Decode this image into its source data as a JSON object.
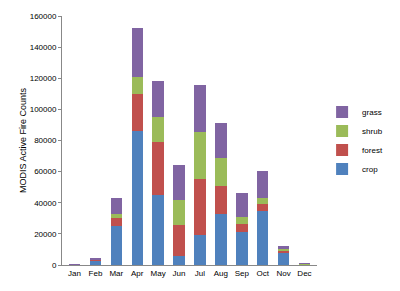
{
  "chart_data": {
    "type": "bar",
    "stacked": true,
    "y_label": "MODIS Active Fire Counts",
    "categories": [
      "Jan",
      "Feb",
      "Mar",
      "Apr",
      "May",
      "Jun",
      "Jul",
      "Aug",
      "Sep",
      "Oct",
      "Nov",
      "Dec"
    ],
    "series": [
      {
        "name": "crop",
        "color": "#4f81bd",
        "values": [
          300,
          3000,
          25000,
          86000,
          45000,
          5500,
          19500,
          33000,
          21500,
          34500,
          8000,
          400
        ]
      },
      {
        "name": "forest",
        "color": "#c0504d",
        "values": [
          100,
          400,
          5000,
          24000,
          34000,
          20500,
          36000,
          18000,
          5000,
          5000,
          1500,
          200
        ]
      },
      {
        "name": "shrub",
        "color": "#9bbb59",
        "values": [
          50,
          300,
          3000,
          11000,
          16000,
          16000,
          30000,
          17500,
          4500,
          3500,
          1000,
          100
        ]
      },
      {
        "name": "grass",
        "color": "#8064a2",
        "values": [
          50,
          300,
          10000,
          31500,
          23000,
          22500,
          30000,
          22500,
          15000,
          17500,
          2000,
          100
        ]
      }
    ],
    "ylim": [
      0,
      160000
    ],
    "yticks": [
      0,
      20000,
      40000,
      60000,
      80000,
      100000,
      120000,
      140000,
      160000
    ],
    "grid": false,
    "legend": "right"
  }
}
